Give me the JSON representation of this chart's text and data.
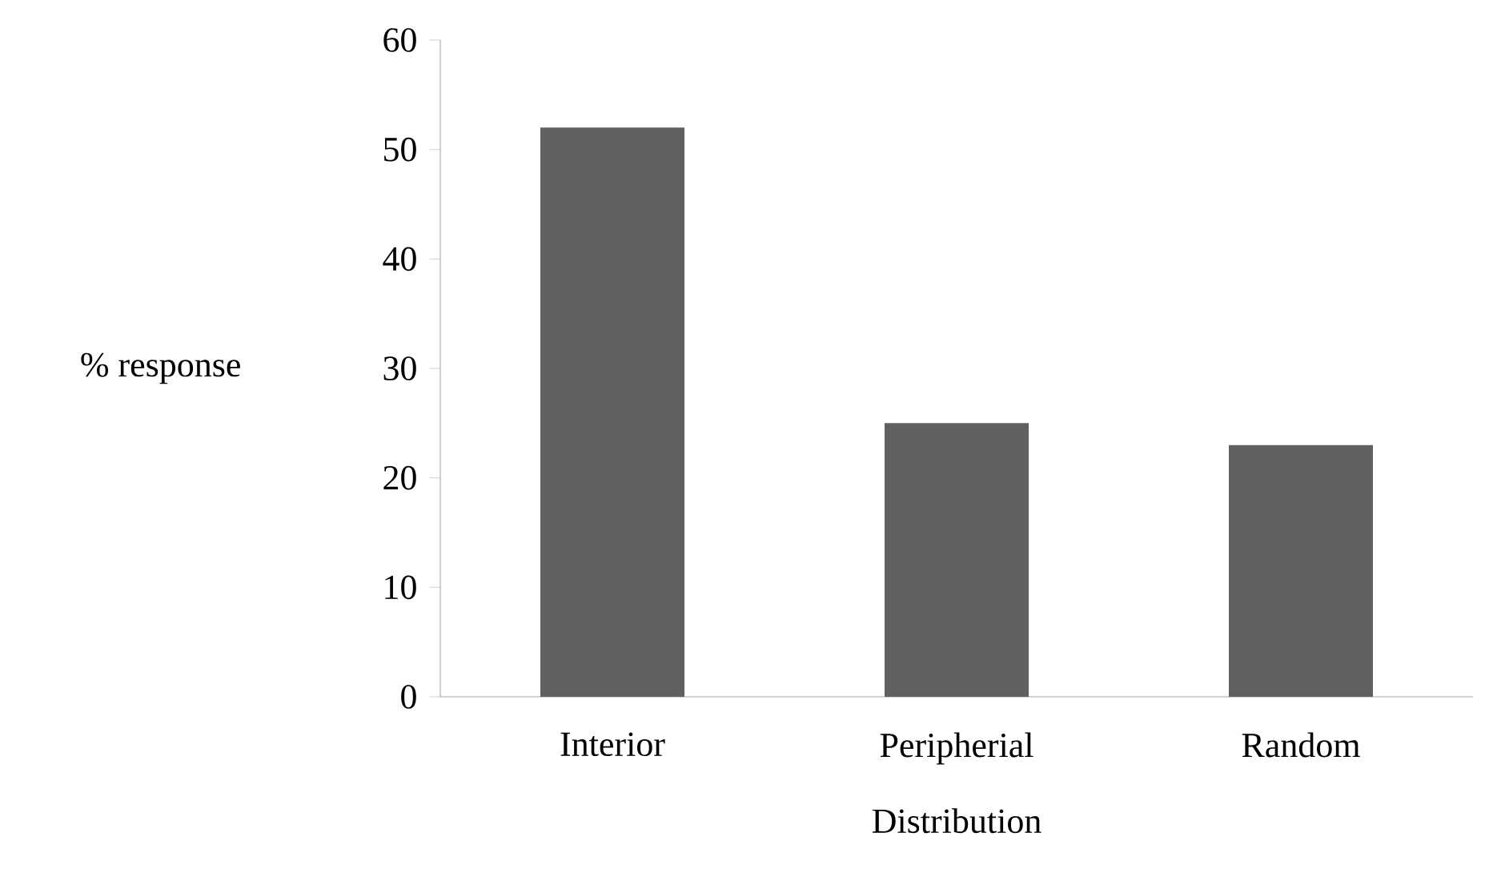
{
  "chart_data": {
    "type": "bar",
    "xlabel": "Distribution",
    "ylabel": "% response",
    "categories": [
      "Interior",
      "Peripherial",
      "Random"
    ],
    "values": [
      52,
      25,
      23
    ],
    "color": "#606060",
    "ylim": [
      0,
      60
    ],
    "yticks": [
      0,
      10,
      20,
      30,
      40,
      50,
      60
    ]
  }
}
